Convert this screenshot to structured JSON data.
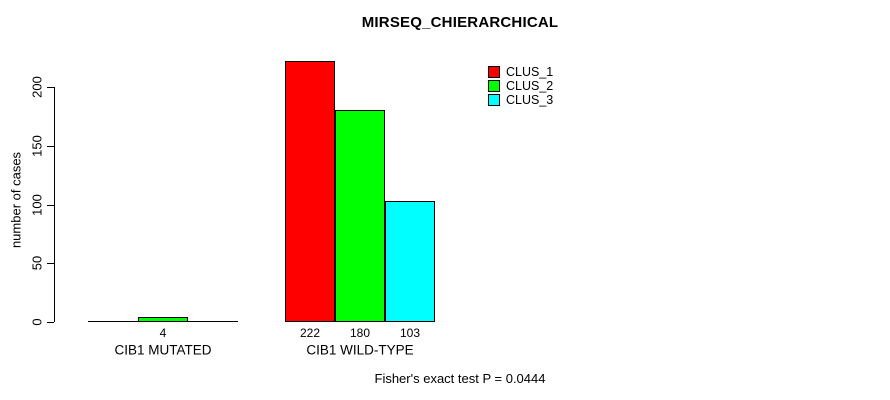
{
  "chart_data": {
    "type": "bar",
    "title": "MIRSEQ_CHIERARCHICAL",
    "ylabel": "number of cases",
    "xlabel": "",
    "ylim": [
      0,
      200
    ],
    "yticks": [
      0,
      50,
      100,
      150,
      200
    ],
    "categories": [
      "CIB1 MUTATED",
      "CIB1 WILD-TYPE"
    ],
    "series": [
      {
        "name": "CLUS_1",
        "color": "#FF0000",
        "values": [
          0,
          222
        ]
      },
      {
        "name": "CLUS_2",
        "color": "#00FF00",
        "values": [
          4,
          180
        ]
      },
      {
        "name": "CLUS_3",
        "color": "#00FFFF",
        "values": [
          0,
          103
        ]
      }
    ],
    "bar_labels": [
      [
        "",
        "4",
        ""
      ],
      [
        "222",
        "180",
        "103"
      ]
    ],
    "legend_position": "top-right",
    "grid": false
  },
  "footer": {
    "text": "Fisher's exact test P = 0.0444"
  }
}
